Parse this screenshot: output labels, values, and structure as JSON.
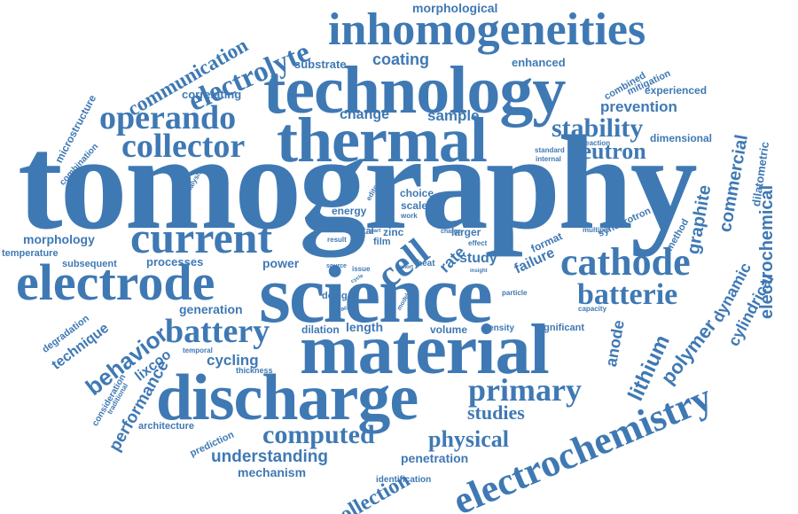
{
  "colors": {
    "word": "#3f79b4",
    "background": "#ffffff"
  },
  "words": {
    "tomography": "tomography",
    "science": "science",
    "technology": "technology",
    "thermal": "thermal",
    "material": "material",
    "discharge": "discharge",
    "electrochemistry": "electrochemistry",
    "inhomogeneities": "inhomogeneities",
    "electrode": "electrode",
    "current": "current",
    "cathode": "cathode",
    "primary": "primary",
    "operando": "operando",
    "collector": "collector",
    "battery": "battery",
    "batterie": "batterie",
    "electrolyte": "electrolyte",
    "communication": "communication",
    "cell": "cell",
    "computed": "computed",
    "behavior": "behavior",
    "stability": "stability",
    "neutron": "neutron",
    "lithium": "lithium",
    "electrochemical": "electrochemical",
    "commercial": "commercial",
    "polymer": "polymer",
    "graphite": "graphite",
    "cylindrical": "cylindrical",
    "physical": "physical",
    "studies": "studies",
    "collection": "collection",
    "performance": "performance",
    "understanding": "understanding",
    "morphological": "morphological",
    "coating": "coating",
    "substrate": "substrate",
    "enhanced": "enhanced",
    "correlating": "correlating",
    "change": "change",
    "sample": "sample",
    "prevention": "prevention",
    "microstructure": "microstructure",
    "combination": "combination",
    "combined": "combined",
    "mitigation": "mitigation",
    "experienced": "experienced",
    "dimensional": "dimensional",
    "dilatometric": "dilatometric",
    "standard": "standard",
    "internal": "internal",
    "reaction": "reaction",
    "analysis": "analysis",
    "editor": "editor",
    "choice": "choice",
    "energy": "energy",
    "scale": "scale",
    "work": "work",
    "studied": "studied",
    "format": "format",
    "multiple": "multiple",
    "synchrotron": "synchrotron",
    "method": "method",
    "dynamic": "dynamic",
    "morphology": "morphology",
    "temperature": "temperature",
    "subsequent": "subsequent",
    "processes": "processes",
    "power": "power",
    "metal": "metal",
    "zinc": "zinc",
    "film": "film",
    "result": "result",
    "part": "part",
    "larger": "larger",
    "charge": "charge",
    "effect": "effect",
    "rate": "rate",
    "study": "study",
    "failure": "failure",
    "heat": "heat",
    "issue": "issue",
    "source": "source",
    "short": "short",
    "insight": "insight",
    "design": "design",
    "surface": "surface",
    "cycle": "cycle",
    "circuit": "circuit",
    "model": "model",
    "generation": "generation",
    "particle": "particle",
    "capacity": "capacity",
    "anode": "anode",
    "technique": "technique",
    "degradation": "degradation",
    "dilation": "dilation",
    "length": "length",
    "volume": "volume",
    "density": "density",
    "significant": "significant",
    "cycling": "cycling",
    "temporal": "temporal",
    "lixcoo": "lixcoo",
    "thickness": "thickness",
    "consideration": "consideration",
    "traditional": "traditional",
    "architecture": "architecture",
    "prediction": "prediction",
    "penetration": "penetration",
    "mechanism": "mechanism",
    "identification": "identification"
  }
}
